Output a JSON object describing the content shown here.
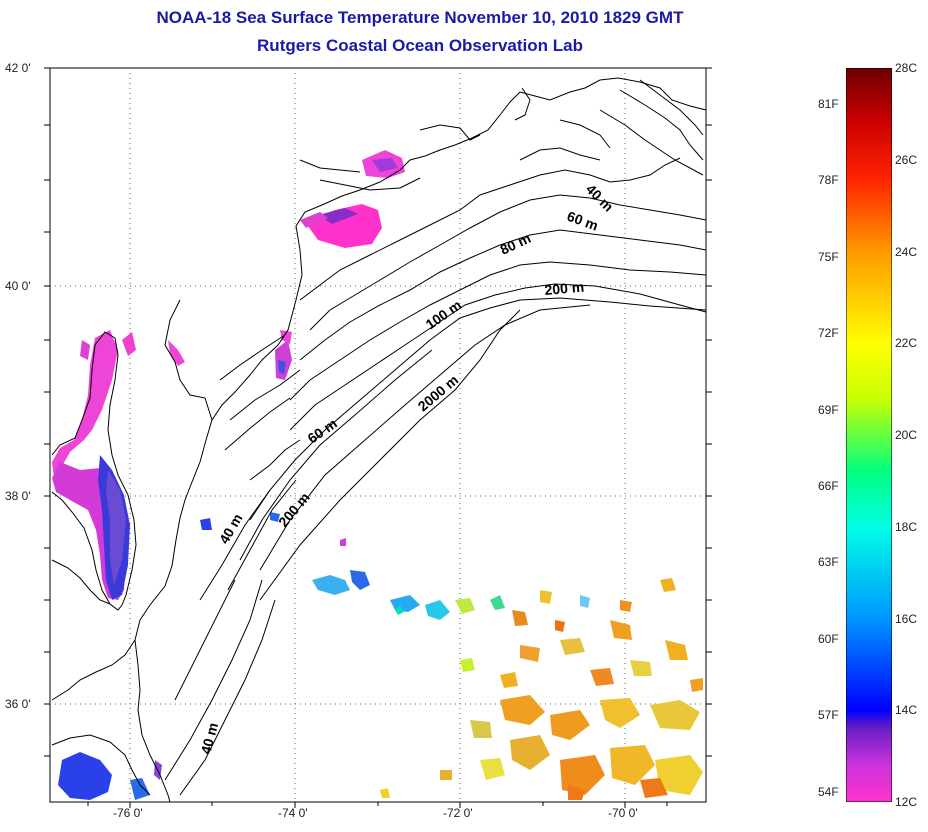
{
  "title": "NOAA-18 Sea Surface Temperature November 10, 2010 1829 GMT",
  "subtitle": "Rutgers Coastal Ocean Observation Lab",
  "lat_ticks": [
    {
      "lat": 42,
      "label": "42 0'"
    },
    {
      "lat": 40,
      "label": "40 0'"
    },
    {
      "lat": 38,
      "label": "38 0'"
    },
    {
      "lat": 36,
      "label": "36 0'"
    }
  ],
  "lon_ticks": [
    {
      "lon": -76,
      "label": "-76 0'"
    },
    {
      "lon": -74,
      "label": "-74 0'"
    },
    {
      "lon": -72,
      "label": "-72 0'"
    },
    {
      "lon": -70,
      "label": "-70 0'"
    }
  ],
  "depth_labels": {
    "d40_ne": "40 m",
    "d60_ne": "60 m",
    "d80": "80 m",
    "d200_ne": "200 m",
    "d100": "100 m",
    "d2000": "2000 m",
    "d60_mid": "60 m",
    "d40_mid": "40 m",
    "d200_mid": "200 m",
    "d40_s": "40 m"
  },
  "colorbar": {
    "min_c": 12,
    "max_c": 28,
    "f_labels": [
      "81F",
      "78F",
      "75F",
      "72F",
      "69F",
      "66F",
      "63F",
      "60F",
      "57F",
      "54F"
    ],
    "f_values": [
      81,
      78,
      75,
      72,
      69,
      66,
      63,
      60,
      57,
      54
    ],
    "c_labels": [
      "28C",
      "26C",
      "24C",
      "22C",
      "20C",
      "18C",
      "16C",
      "14C",
      "12C"
    ],
    "c_values": [
      28,
      26,
      24,
      22,
      20,
      18,
      16,
      14,
      12
    ],
    "colors": [
      "#ff33cc",
      "#6a1fc4",
      "#0000ff",
      "#0096ff",
      "#00ffe6",
      "#00ff80",
      "#c8ff00",
      "#ffff00",
      "#ff9900",
      "#ff2200",
      "#c80000",
      "#6e0000"
    ]
  }
}
